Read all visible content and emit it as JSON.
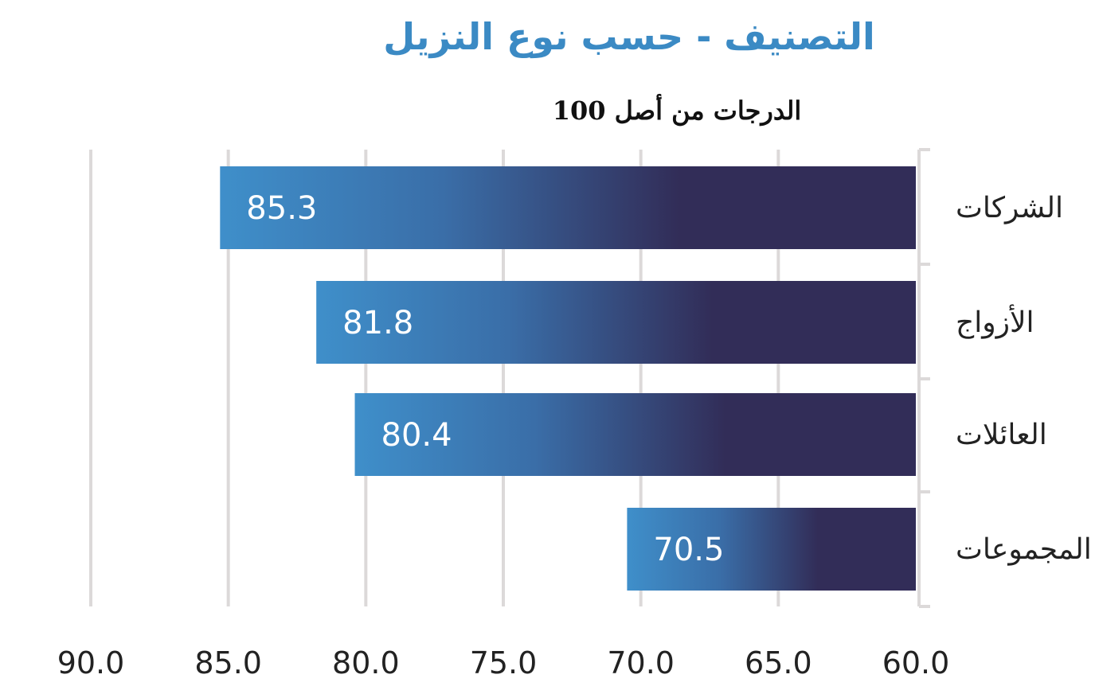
{
  "chart_data": {
    "type": "bar",
    "orientation": "horizontal",
    "title": "التصنيف - حسب نوع النزيل",
    "subtitle": "الدرجات من أصل 100",
    "categories": [
      "الشركات",
      "الأزواج",
      "العائلات",
      "المجموعات"
    ],
    "values": [
      85.3,
      81.8,
      80.4,
      70.5
    ],
    "value_labels": [
      "85.3",
      "81.8",
      "80.4",
      "70.5"
    ],
    "xlim": [
      60,
      90
    ],
    "x_reversed": true,
    "x_ticks": [
      90,
      85,
      80,
      75,
      70,
      65,
      60
    ],
    "x_tick_labels": [
      "90.0",
      "85.0",
      "80.0",
      "75.0",
      "70.0",
      "65.0",
      "60.0"
    ],
    "grid": true,
    "colors": {
      "title": "#3b8ac4",
      "subtitle": "#111111",
      "bar_light": "#3f8fca",
      "bar_dark": "#322d58",
      "grid": "#dcd9d9",
      "value_label": "#ffffff",
      "text": "#222222"
    }
  }
}
